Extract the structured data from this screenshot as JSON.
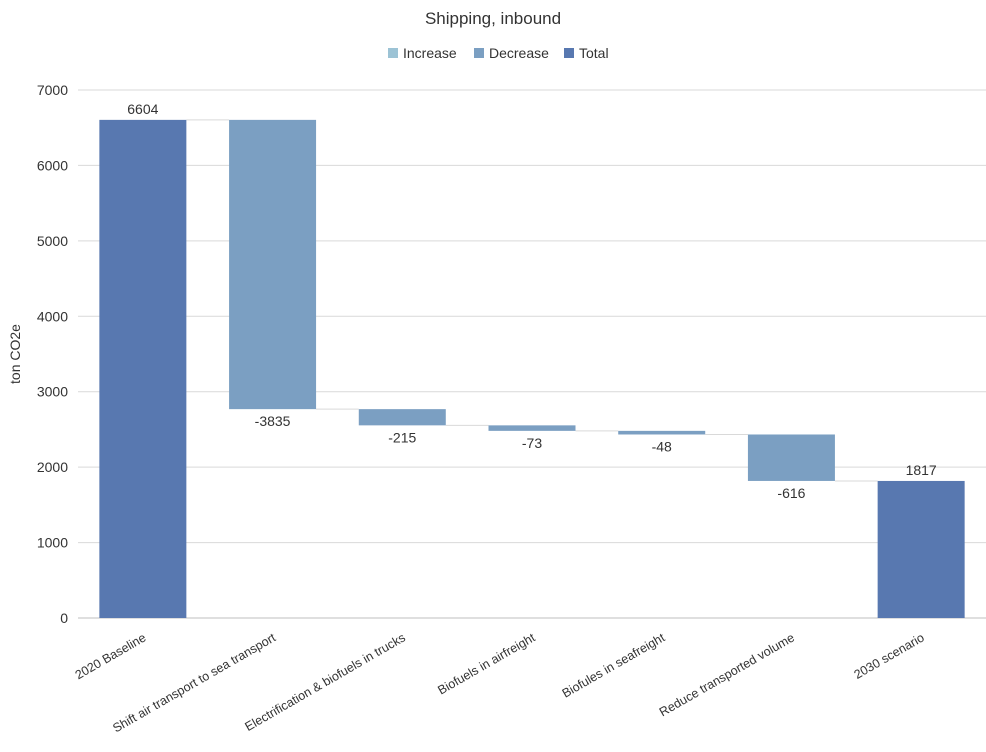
{
  "chart_data": {
    "type": "bar",
    "subtype": "waterfall",
    "title": "Shipping, inbound",
    "ylabel": "ton CO2e",
    "xlabel": "",
    "ylim": [
      0,
      7000
    ],
    "yticks": [
      0,
      1000,
      2000,
      3000,
      4000,
      5000,
      6000,
      7000
    ],
    "grid": true,
    "legend_position": "top",
    "legend": [
      {
        "name": "Increase",
        "color": "#9cc3d5"
      },
      {
        "name": "Decrease",
        "color": "#7b9fc2"
      },
      {
        "name": "Total",
        "color": "#5878b0"
      }
    ],
    "categories": [
      "2020 Baseline",
      "Shift air transport to sea transport",
      "Electrification & biofuels in trucks",
      "Biofuels in airfreight",
      "Biofules in seafreight",
      "Reduce transported volume",
      "2030 scenario"
    ],
    "values": [
      6604,
      -3835,
      -215,
      -73,
      -48,
      -616,
      1817
    ],
    "kinds": [
      "total",
      "decrease",
      "decrease",
      "decrease",
      "decrease",
      "decrease",
      "total"
    ],
    "data_labels": [
      "6604",
      "-3835",
      "-215",
      "-73",
      "-48",
      "-616",
      "1817"
    ]
  }
}
